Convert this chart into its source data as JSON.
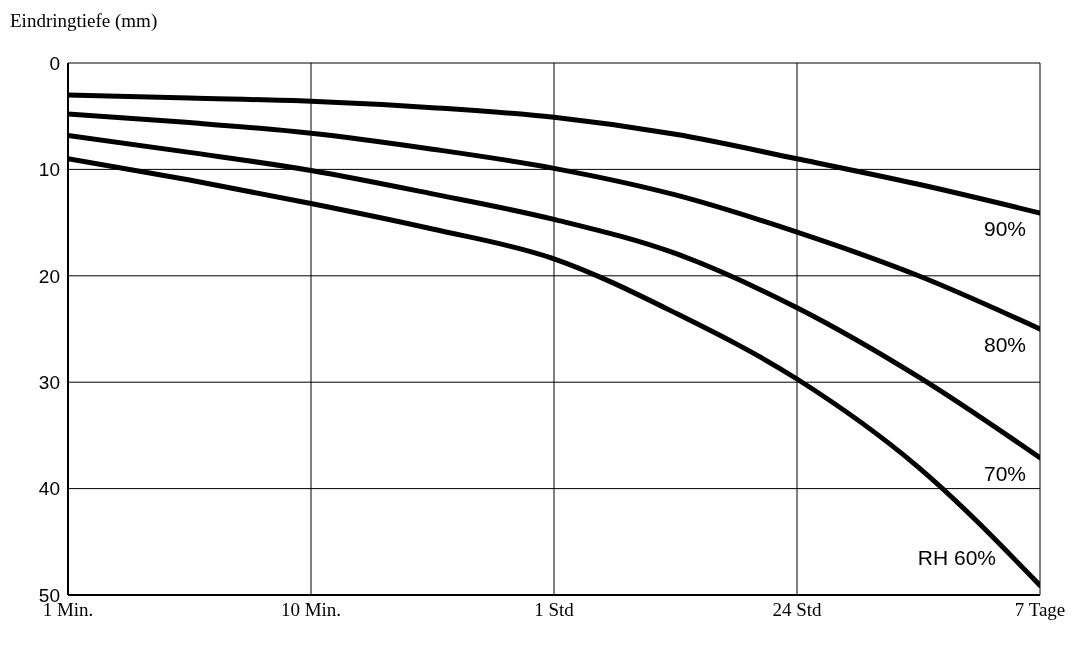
{
  "chart_data": {
    "type": "line",
    "ylabel": "Eindringtiefe (mm)",
    "categories": [
      "1 Min.",
      null,
      "10 Min.",
      null,
      "1 Std",
      null,
      "24 Std",
      null,
      "7 Tage"
    ],
    "series": [
      {
        "name": "90%",
        "color": "#000000",
        "values": [
          3.0,
          3.3,
          3.6,
          4.2,
          5.1,
          6.7,
          9.0,
          11.4,
          14.1
        ]
      },
      {
        "name": "80%",
        "color": "#000000",
        "values": [
          4.8,
          5.6,
          6.6,
          8.1,
          9.9,
          12.4,
          15.9,
          20.0,
          25.0
        ]
      },
      {
        "name": "70%",
        "color": "#000000",
        "values": [
          6.8,
          8.4,
          10.1,
          12.3,
          14.7,
          17.9,
          23.0,
          29.5,
          37.1
        ]
      },
      {
        "name": "RH 60%",
        "color": "#000000",
        "values": [
          9.0,
          11.0,
          13.2,
          15.6,
          18.4,
          23.5,
          29.7,
          38.0,
          49.1
        ]
      }
    ],
    "ylim": [
      50,
      0
    ],
    "yticks": [
      0,
      10,
      20,
      30,
      40,
      50
    ],
    "grid": true,
    "legend": false,
    "marker": "none",
    "line_style": "solid"
  }
}
